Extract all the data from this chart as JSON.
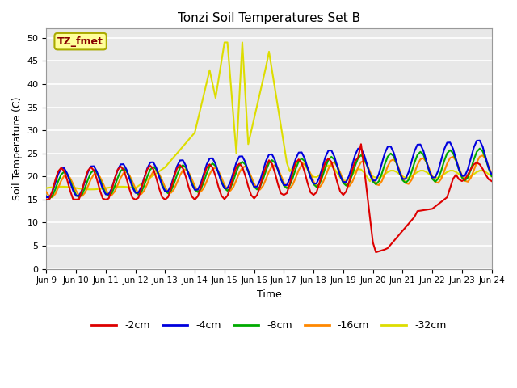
{
  "title": "Tonzi Soil Temperatures Set B",
  "xlabel": "Time",
  "ylabel": "Soil Temperature (C)",
  "ylim": [
    0,
    52
  ],
  "yticks": [
    0,
    5,
    10,
    15,
    20,
    25,
    30,
    35,
    40,
    45,
    50
  ],
  "bg_color": "#e8e8e8",
  "fig_color": "#ffffff",
  "grid_color": "#ffffff",
  "annotation_label": "TZ_fmet",
  "annotation_text_color": "#880000",
  "annotation_bg": "#ffff99",
  "annotation_border": "#aaaa00",
  "colors": {
    "-2cm": "#dd0000",
    "-4cm": "#0000dd",
    "-8cm": "#00aa00",
    "-16cm": "#ff8800",
    "-32cm": "#dddd00"
  },
  "lw": 1.5,
  "xtick_labels": [
    "Jun 9",
    "Jun 10",
    "Jun 11",
    "Jun 12",
    "Jun 13",
    "Jun 14",
    "Jun 15",
    "Jun 16",
    "Jun 17",
    "Jun 18",
    "Jun 19",
    "Jun 20",
    "Jun 21",
    "Jun 22",
    "Jun 23",
    "Jun 24"
  ]
}
